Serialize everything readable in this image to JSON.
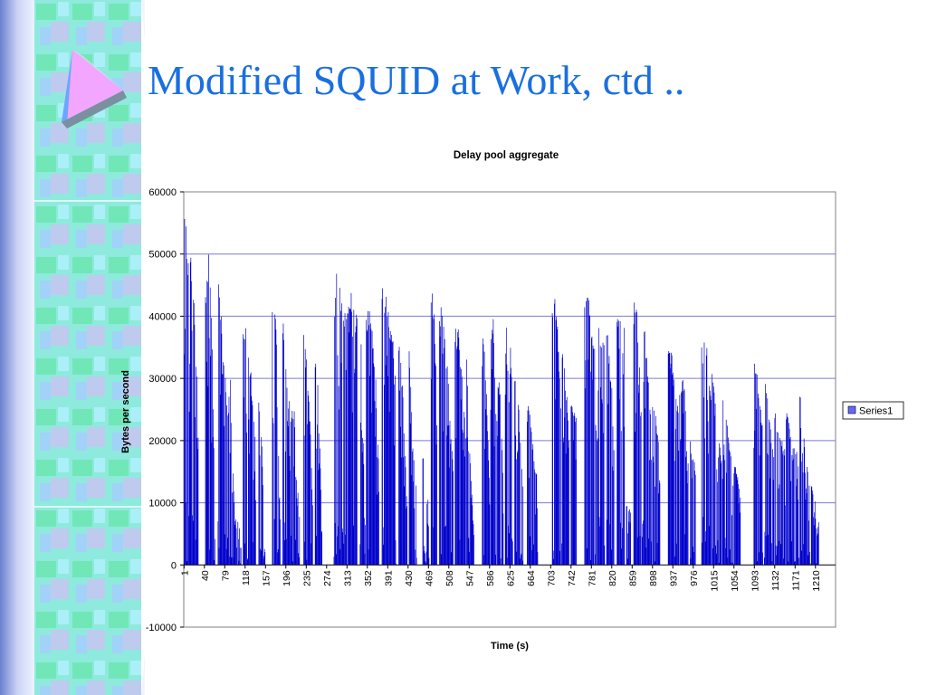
{
  "slide": {
    "title": "Modified SQUID at Work, ctd ..",
    "title_color": "#1a6fe0"
  },
  "decor": {
    "sidebar": "teal-pattern-sidebar",
    "logo": "pyramid-logo-icon"
  },
  "chart_data": {
    "type": "bar",
    "title": "Delay pool aggregate",
    "xlabel": "Time (s)",
    "ylabel": "Bytes per second",
    "ylim": [
      -10000,
      60000
    ],
    "yticks": [
      -10000,
      0,
      10000,
      20000,
      30000,
      40000,
      50000,
      60000
    ],
    "xticks": [
      "1",
      "40",
      "79",
      "118",
      "157",
      "196",
      "235",
      "274",
      "313",
      "352",
      "391",
      "430",
      "469",
      "508",
      "547",
      "586",
      "625",
      "664",
      "703",
      "742",
      "781",
      "820",
      "859",
      "898",
      "937",
      "976",
      "1015",
      "1054",
      "1093",
      "1132",
      "1171",
      "1210"
    ],
    "x_range": [
      1,
      1248
    ],
    "grid": true,
    "legend_position": "right",
    "series": [
      {
        "name": "Series1",
        "color": "#0000cc",
        "bursts": [
          [
            1,
            28,
            [
              56000,
              55000,
              52000,
              47000,
              51000,
              48000,
              41000,
              32000,
              29000
            ]
          ],
          [
            42,
            60,
            [
              45000,
              50000,
              51000,
              44000,
              30000,
              8000
            ]
          ],
          [
            66,
            102,
            [
              51000,
              40000,
              33000,
              25000,
              31000,
              12000,
              5000
            ]
          ],
          [
            104,
            110,
            [
              9000,
              3000
            ]
          ],
          [
            114,
            138,
            [
              38000,
              40000,
              35000,
              27000,
              20000
            ]
          ],
          [
            144,
            156,
            [
              28000,
              12000
            ]
          ],
          [
            170,
            185,
            [
              45000,
              44000,
              40000,
              22000,
              8000
            ]
          ],
          [
            190,
            222,
            [
              40000,
              34000,
              28000,
              25000,
              26000,
              16000,
              8000
            ]
          ],
          [
            230,
            247,
            [
              37000,
              35000,
              30000,
              22000,
              10000
            ]
          ],
          [
            252,
            265,
            [
              35000,
              36000,
              28000,
              18000,
              6000
            ]
          ],
          [
            288,
            312,
            [
              43000,
              48000,
              44000,
              43000,
              40000
            ]
          ],
          [
            314,
            332,
            [
              43000,
              46000,
              44000,
              42000,
              40000
            ]
          ],
          [
            338,
            348,
            [
              45000,
              22000,
              10000
            ]
          ],
          [
            350,
            374,
            [
              41000,
              42000,
              38000,
              30000,
              15000
            ]
          ],
          [
            380,
            407,
            [
              45000,
              44000,
              41000,
              38000,
              30000
            ]
          ],
          [
            412,
            428,
            [
              38000,
              33000,
              22000,
              10000
            ]
          ],
          [
            432,
            446,
            [
              36000,
              20000,
              12000
            ]
          ],
          [
            458,
            470,
            [
              19000,
              14000,
              9000
            ]
          ],
          [
            474,
            485,
            [
              46000,
              42000,
              28000
            ]
          ],
          [
            490,
            516,
            [
              40000,
              43000,
              36000,
              32000,
              24000,
              16000
            ]
          ],
          [
            520,
            540,
            [
              39000,
              38000,
              30000,
              22000
            ]
          ],
          [
            542,
            556,
            [
              35000,
              22000,
              13000,
              5000
            ]
          ],
          [
            572,
            586,
            [
              40000,
              34000,
              25000,
              12000
            ]
          ],
          [
            588,
            598,
            [
              38000,
              40000,
              26000
            ]
          ],
          [
            600,
            612,
            [
              32000,
              30000,
              15000
            ]
          ],
          [
            616,
            630,
            [
              40000,
              41000,
              28000
            ]
          ],
          [
            634,
            650,
            [
              31000,
              25000,
              14000
            ]
          ],
          [
            658,
            678,
            [
              28000,
              24000,
              17000,
              14000
            ]
          ],
          [
            706,
            722,
            [
              43000,
              45000,
              38000,
              26000
            ]
          ],
          [
            724,
            738,
            [
              37000,
              33000,
              28000,
              22000
            ]
          ],
          [
            742,
            752,
            [
              28000,
              24000
            ]
          ],
          [
            768,
            790,
            [
              44000,
              43000,
              38000,
              34000
            ]
          ],
          [
            792,
            806,
            [
              39000,
              38000,
              36000
            ]
          ],
          [
            810,
            824,
            [
              40000,
              34000,
              30000,
              20000
            ]
          ],
          [
            830,
            844,
            [
              40000,
              43000,
              39000
            ]
          ],
          [
            848,
            856,
            [
              10000,
              9000
            ]
          ],
          [
            862,
            876,
            [
              43000,
              42000,
              38000,
              30000
            ]
          ],
          [
            878,
            896,
            [
              39000,
              38000,
              30000,
              22000
            ]
          ],
          [
            898,
            912,
            [
              26000,
              24000,
              17000
            ]
          ],
          [
            928,
            948,
            [
              36000,
              34000,
              30000,
              25000
            ]
          ],
          [
            950,
            966,
            [
              29000,
              30000,
              18000
            ]
          ],
          [
            970,
            980,
            [
              20000,
              16000
            ]
          ],
          [
            992,
            1010,
            [
              38000,
              40000,
              34000,
              29000
            ]
          ],
          [
            1012,
            1030,
            [
              31000,
              28000,
              22000,
              17000
            ]
          ],
          [
            1032,
            1052,
            [
              27000,
              25000,
              20000,
              14000
            ]
          ],
          [
            1054,
            1066,
            [
              18000,
              12000
            ]
          ],
          [
            1092,
            1110,
            [
              33000,
              31000,
              27000,
              21000
            ]
          ],
          [
            1112,
            1130,
            [
              32000,
              28000,
              22000,
              18000
            ]
          ],
          [
            1132,
            1152,
            [
              25000,
              23000,
              20000,
              19000
            ]
          ],
          [
            1154,
            1178,
            [
              26000,
              22000,
              20000,
              17000
            ]
          ],
          [
            1180,
            1200,
            [
              28000,
              22000,
              17000,
              12000
            ]
          ],
          [
            1202,
            1216,
            [
              14000,
              7000
            ]
          ]
        ]
      }
    ]
  }
}
